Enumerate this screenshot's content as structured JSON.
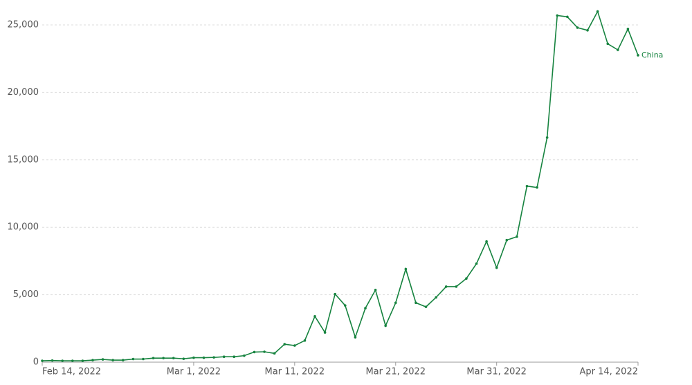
{
  "chart_data": {
    "type": "line",
    "x": [
      "2022-02-14",
      "2022-02-15",
      "2022-02-16",
      "2022-02-17",
      "2022-02-18",
      "2022-02-19",
      "2022-02-20",
      "2022-02-21",
      "2022-02-22",
      "2022-02-23",
      "2022-02-24",
      "2022-02-25",
      "2022-02-26",
      "2022-02-27",
      "2022-02-28",
      "2022-03-01",
      "2022-03-02",
      "2022-03-03",
      "2022-03-04",
      "2022-03-05",
      "2022-03-06",
      "2022-03-07",
      "2022-03-08",
      "2022-03-09",
      "2022-03-10",
      "2022-03-11",
      "2022-03-12",
      "2022-03-13",
      "2022-03-14",
      "2022-03-15",
      "2022-03-16",
      "2022-03-17",
      "2022-03-18",
      "2022-03-19",
      "2022-03-20",
      "2022-03-21",
      "2022-03-22",
      "2022-03-23",
      "2022-03-24",
      "2022-03-25",
      "2022-03-26",
      "2022-03-27",
      "2022-03-28",
      "2022-03-29",
      "2022-03-30",
      "2022-03-31",
      "2022-04-01",
      "2022-04-02",
      "2022-04-03",
      "2022-04-04",
      "2022-04-05",
      "2022-04-06",
      "2022-04-07",
      "2022-04-08",
      "2022-04-09",
      "2022-04-10",
      "2022-04-11",
      "2022-04-12",
      "2022-04-13",
      "2022-04-14"
    ],
    "series": [
      {
        "name": "China",
        "color": "#16833f",
        "values": [
          100,
          120,
          100,
          100,
          100,
          150,
          200,
          150,
          150,
          230,
          230,
          300,
          300,
          300,
          250,
          330,
          330,
          350,
          400,
          400,
          480,
          750,
          770,
          650,
          1330,
          1230,
          1600,
          3400,
          2200,
          5050,
          4200,
          1850,
          4000,
          5350,
          2700,
          4400,
          6900,
          4400,
          4100,
          4800,
          5600,
          5600,
          6200,
          7300,
          8950,
          7000,
          9050,
          9300,
          13050,
          12950,
          16650,
          25700,
          25600,
          24800,
          24600,
          26000,
          23600,
          23150,
          24700,
          22750
        ]
      }
    ],
    "xlim": [
      "2022-02-14",
      "2022-04-14"
    ],
    "xticks": [
      {
        "value": "2022-02-14",
        "label": "Feb 14, 2022"
      },
      {
        "value": "2022-03-01",
        "label": "Mar 1, 2022"
      },
      {
        "value": "2022-03-11",
        "label": "Mar 11, 2022"
      },
      {
        "value": "2022-03-21",
        "label": "Mar 21, 2022"
      },
      {
        "value": "2022-03-31",
        "label": "Mar 31, 2022"
      },
      {
        "value": "2022-04-14",
        "label": "Apr 14, 2022"
      }
    ],
    "ylim": [
      0,
      25000
    ],
    "yticks": [
      0,
      {
        "value": 5000,
        "label": "5,000"
      },
      {
        "value": 10000,
        "label": "10,000"
      },
      {
        "value": 15000,
        "label": "15,000"
      },
      {
        "value": 20000,
        "label": "20,000"
      },
      {
        "value": 25000,
        "label": "25,000"
      }
    ],
    "grid": true
  }
}
